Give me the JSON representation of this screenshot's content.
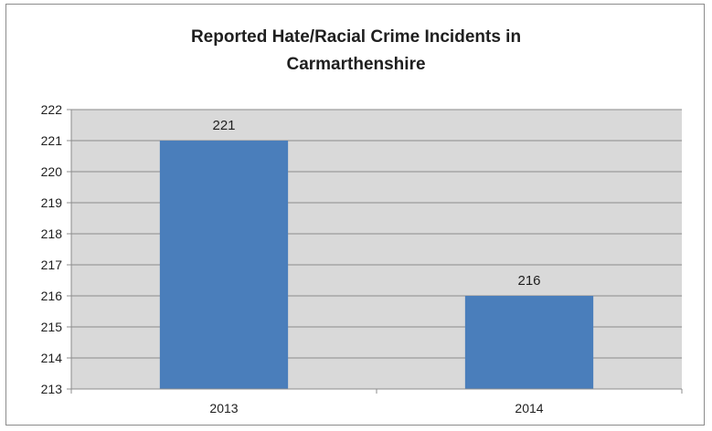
{
  "chart_data": {
    "type": "bar",
    "title": "Reported Hate/Racial Crime Incidents in Carmarthenshire",
    "title_lines": [
      "Reported Hate/Racial Crime Incidents in",
      "Carmarthenshire"
    ],
    "categories": [
      "2013",
      "2014"
    ],
    "values": [
      221,
      216
    ],
    "data_labels": [
      "221",
      "216"
    ],
    "ylim": [
      213,
      222
    ],
    "yticks": [
      "213",
      "214",
      "215",
      "216",
      "217",
      "218",
      "219",
      "220",
      "221",
      "222"
    ],
    "xlabel": "",
    "ylabel": "",
    "grid": true,
    "legend": "none",
    "colors": {
      "bar": "#4a7ebb",
      "plot_background": "#d9d9d9",
      "gridline": "#8c8c8c",
      "text": "#1f1f1f"
    }
  }
}
